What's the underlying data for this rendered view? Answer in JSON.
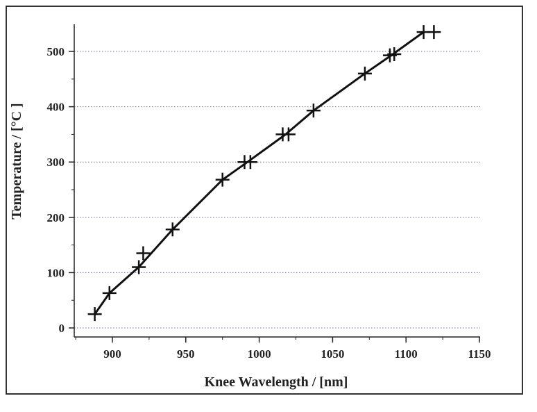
{
  "chart_data": {
    "type": "line",
    "xlabel": "Knee Wavelength / [nm]",
    "ylabel": "Temperature / [°C ]",
    "xlim": [
      870,
      1150
    ],
    "ylim": [
      -10,
      550
    ],
    "xticks": [
      "900",
      "950",
      "1000",
      "1050",
      "1100",
      "1150"
    ],
    "yticks": [
      "0",
      "100",
      "200",
      "300",
      "400",
      "500"
    ],
    "grid": "horizontal dotted",
    "series": [
      {
        "marker": "plus",
        "color": "#111111",
        "points": [
          [
            888,
            25
          ],
          [
            898,
            63
          ],
          [
            918,
            110
          ],
          [
            921,
            135
          ],
          [
            941,
            178
          ],
          [
            975,
            268
          ],
          [
            990,
            300
          ],
          [
            994,
            300
          ],
          [
            1016,
            350
          ],
          [
            1020,
            350
          ],
          [
            1037,
            393
          ],
          [
            1072,
            460
          ],
          [
            1089,
            493
          ],
          [
            1092,
            495
          ],
          [
            1112,
            535
          ],
          [
            1119,
            535
          ]
        ],
        "line": [
          [
            888,
            25
          ],
          [
            898,
            63
          ],
          [
            918,
            110
          ],
          [
            941,
            178
          ],
          [
            975,
            268
          ],
          [
            992,
            300
          ],
          [
            1018,
            350
          ],
          [
            1037,
            393
          ],
          [
            1072,
            460
          ],
          [
            1090,
            493
          ],
          [
            1112,
            535
          ]
        ]
      }
    ]
  }
}
